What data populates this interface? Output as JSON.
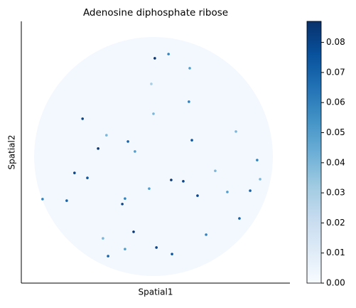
{
  "chart_data": {
    "type": "scatter",
    "title": "Adenosine diphosphate ribose",
    "x_label": "Spatial1",
    "y_label": "Spatial2",
    "xlim": [
      0,
      100
    ],
    "ylim": [
      0,
      100
    ],
    "x": [
      49.7,
      54.8,
      22.8,
      28.6,
      39.7,
      63.5,
      62.4,
      19.8,
      24.6,
      55.8,
      60.3,
      65.6,
      85.2,
      87.8,
      81.2,
      41.8,
      50.3,
      56.1,
      32.3,
      16.9,
      37.6,
      38.6,
      62.7,
      49.2,
      48.4,
      42.3,
      31.7,
      7.9,
      68.8,
      76.7,
      72.2,
      47.6,
      30.4,
      38.6,
      79.9,
      88.9
    ],
    "y": [
      85.9,
      87.5,
      62.8,
      51.4,
      54.1,
      54.6,
      69.3,
      42.1,
      40.2,
      39.4,
      38.9,
      33.4,
      35.3,
      47.0,
      24.7,
      19.6,
      13.6,
      11.1,
      10.3,
      31.5,
      30.2,
      32.3,
      82.1,
      64.7,
      76.1,
      50.3,
      56.5,
      32.1,
      18.5,
      34.8,
      42.9,
      36.1,
      17.1,
      13.0,
      57.9,
      39.7
    ],
    "values": [
      0.087,
      0.06,
      0.08,
      0.085,
      0.07,
      0.075,
      0.06,
      0.08,
      0.075,
      0.085,
      0.08,
      0.08,
      0.07,
      0.06,
      0.07,
      0.085,
      0.08,
      0.075,
      0.07,
      0.07,
      0.08,
      0.06,
      0.05,
      0.04,
      0.03,
      0.05,
      0.04,
      0.06,
      0.06,
      0.05,
      0.04,
      0.05,
      0.04,
      0.05,
      0.04,
      0.04
    ],
    "clim": [
      0,
      0.087
    ],
    "cticks": [
      {
        "value": 0,
        "label": "0.00"
      },
      {
        "value": 0.01,
        "label": "0.01"
      },
      {
        "value": 0.02,
        "label": "0.02"
      },
      {
        "value": 0.03,
        "label": "0.03"
      },
      {
        "value": 0.04,
        "label": "0.04"
      },
      {
        "value": 0.05,
        "label": "0.05"
      },
      {
        "value": 0.06,
        "label": "0.06"
      },
      {
        "value": 0.07,
        "label": "0.07"
      },
      {
        "value": 0.08,
        "label": "0.08"
      }
    ],
    "colormap": [
      "#f7fbff",
      "#deebf7",
      "#c6dbef",
      "#9ecae1",
      "#6baed6",
      "#4292c6",
      "#2171b5",
      "#08519c",
      "#08306b"
    ]
  }
}
